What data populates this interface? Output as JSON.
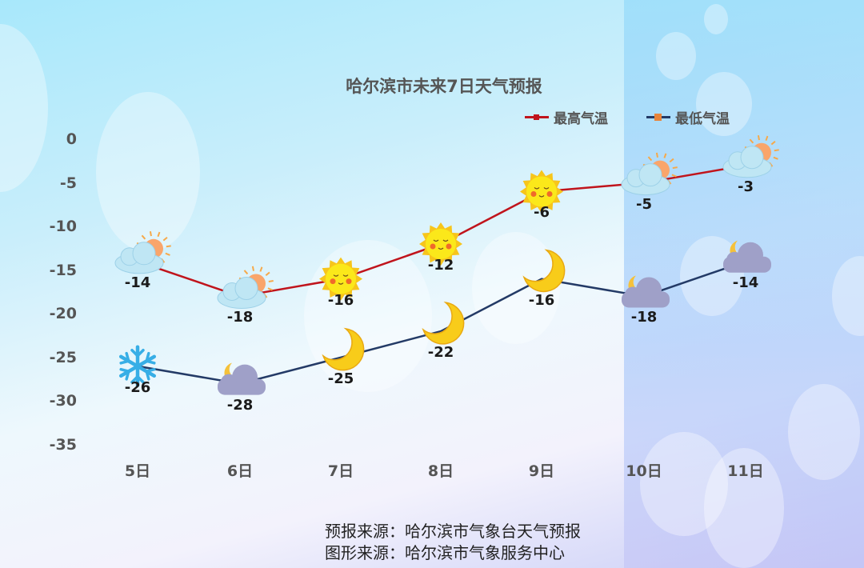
{
  "chart_data": {
    "type": "line",
    "title": "哈尔滨市未来7日天气预报",
    "categories": [
      "5日",
      "6日",
      "7日",
      "8日",
      "9日",
      "10日",
      "11日"
    ],
    "series": [
      {
        "name": "最高气温",
        "color": "#c0141c",
        "values": [
          -14,
          -18,
          -16,
          -12,
          -6,
          -5,
          -3
        ],
        "icons": [
          "partly-sunny-icon",
          "partly-sunny-icon",
          "sun-icon",
          "sun-icon",
          "sun-icon",
          "partly-sunny-icon",
          "partly-sunny-icon"
        ]
      },
      {
        "name": "最低气温",
        "color": "#233a66",
        "marker_color": "#e8843a",
        "values": [
          -26,
          -28,
          -25,
          -22,
          -16,
          -18,
          -14
        ],
        "icons": [
          "snowflake-icon",
          "moon-cloud-icon",
          "moon-icon",
          "moon-icon",
          "moon-icon",
          "moon-cloud-icon",
          "moon-cloud-icon"
        ]
      }
    ],
    "yticks": [
      "0",
      "-5",
      "-10",
      "-15",
      "-20",
      "-25",
      "-30",
      "-35"
    ],
    "ylim": [
      -35,
      0
    ],
    "xlabel": "",
    "ylabel": "",
    "grid": false,
    "legend_position": "top-right"
  },
  "footer": {
    "line1": "预报来源：哈尔滨市气象台天气预报",
    "line2": "图形来源：哈尔滨市气象服务中心"
  }
}
